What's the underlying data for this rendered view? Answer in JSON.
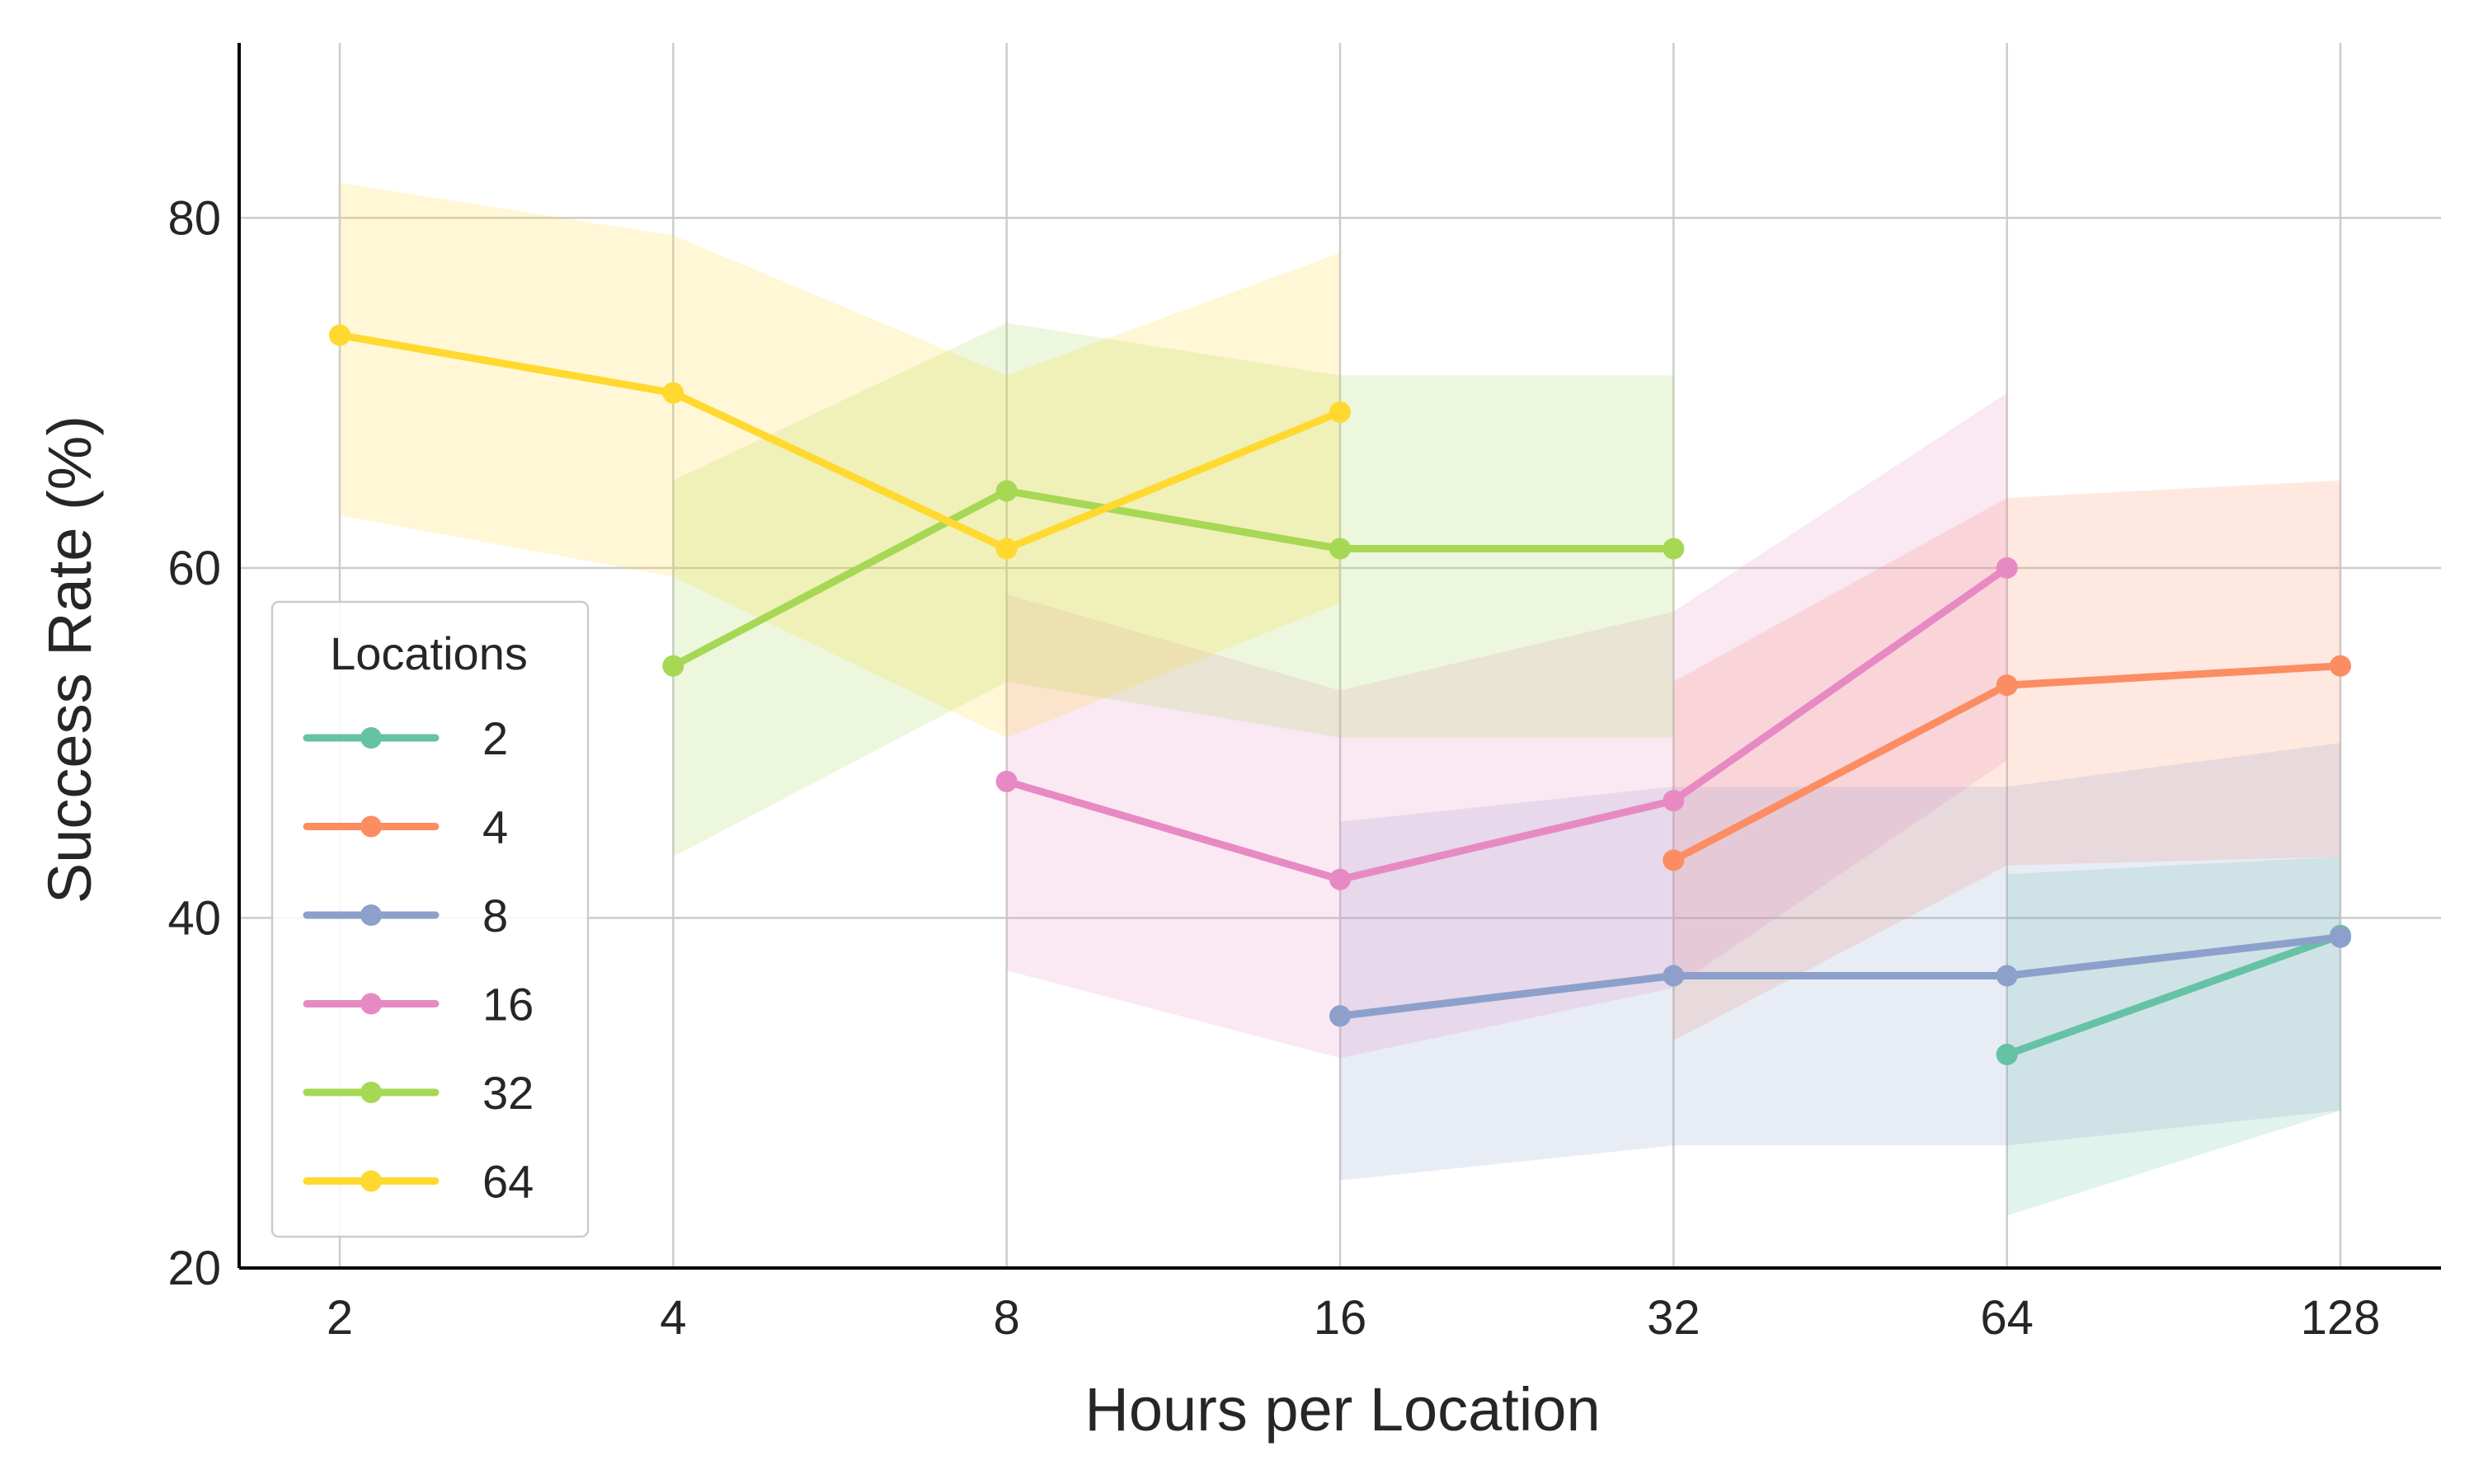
{
  "chart_data": {
    "type": "line",
    "xlabel": "Hours per Location",
    "ylabel": "Success Rate (%)",
    "x_scale": "log2",
    "xticks": [
      2,
      4,
      8,
      16,
      32,
      64,
      128
    ],
    "xtick_labels": [
      "2",
      "4",
      "8",
      "16",
      "32",
      "64",
      "128"
    ],
    "ylim": [
      20,
      90
    ],
    "yticks": [
      20,
      40,
      60,
      80
    ],
    "ytick_labels": [
      "20",
      "40",
      "60",
      "80"
    ],
    "grid": true,
    "legend": {
      "title": "Locations",
      "position": "lower-left"
    },
    "series": [
      {
        "name": "2",
        "color": "#66c2a5",
        "x": [
          64,
          128
        ],
        "y": [
          32.2,
          39.0
        ],
        "lower": [
          23.0,
          29.0
        ],
        "upper": [
          42.5,
          43.5
        ]
      },
      {
        "name": "4",
        "color": "#fc8d62",
        "x": [
          32,
          64,
          128
        ],
        "y": [
          43.3,
          53.3,
          54.4
        ],
        "lower": [
          33.0,
          43.0,
          43.5
        ],
        "upper": [
          53.5,
          64.0,
          65.0
        ]
      },
      {
        "name": "8",
        "color": "#8da0cb",
        "x": [
          16,
          32,
          64,
          128
        ],
        "y": [
          34.4,
          36.7,
          36.7,
          38.9
        ],
        "lower": [
          25.0,
          27.0,
          27.0,
          29.0
        ],
        "upper": [
          45.5,
          47.5,
          47.5,
          50.0
        ]
      },
      {
        "name": "16",
        "color": "#e78ac3",
        "x": [
          8,
          16,
          32,
          64
        ],
        "y": [
          47.8,
          42.2,
          46.7,
          60.0
        ],
        "lower": [
          37.0,
          32.0,
          36.0,
          49.0
        ],
        "upper": [
          58.5,
          53.0,
          57.5,
          70.0
        ]
      },
      {
        "name": "32",
        "color": "#a6d854",
        "x": [
          4,
          8,
          16,
          32
        ],
        "y": [
          54.4,
          64.4,
          61.1,
          61.1
        ],
        "lower": [
          43.5,
          53.5,
          50.3,
          50.3
        ],
        "upper": [
          65.0,
          74.0,
          71.0,
          71.0
        ]
      },
      {
        "name": "64",
        "color": "#ffd92f",
        "x": [
          2,
          4,
          8,
          16
        ],
        "y": [
          73.3,
          70.0,
          61.1,
          68.9
        ],
        "lower": [
          63.0,
          59.5,
          50.3,
          58.0
        ],
        "upper": [
          82.0,
          79.0,
          71.0,
          78.0
        ]
      }
    ]
  }
}
